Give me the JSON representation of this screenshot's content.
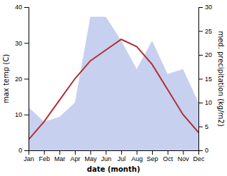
{
  "chart_data": {
    "type": "line",
    "categories": [
      "Jan",
      "Feb",
      "Mar",
      "Apr",
      "May",
      "Jun",
      "Jul",
      "Aug",
      "Sep",
      "Oct",
      "Nov",
      "Dec"
    ],
    "series": [
      {
        "type": "area",
        "axis": "y2",
        "color": "#c8d0f0",
        "values": [
          9,
          6,
          7,
          10,
          28,
          28,
          23,
          17,
          23,
          16,
          17,
          10
        ]
      },
      {
        "type": "line",
        "color": "#b03030",
        "values": [
          3,
          8,
          14,
          20,
          25,
          28,
          31,
          29,
          24,
          17,
          10,
          5
        ]
      }
    ],
    "xlabel": "date (month)",
    "ylabel": "max temp (C)",
    "y2label": "med. precipitation (kg/m2)",
    "ylim": [
      0,
      40
    ],
    "yticks": [
      0,
      10,
      20,
      30,
      40
    ],
    "y2lim": [
      0,
      30
    ],
    "y2ticks": [
      0,
      5,
      10,
      15,
      20,
      25,
      30
    ],
    "grid": false
  }
}
